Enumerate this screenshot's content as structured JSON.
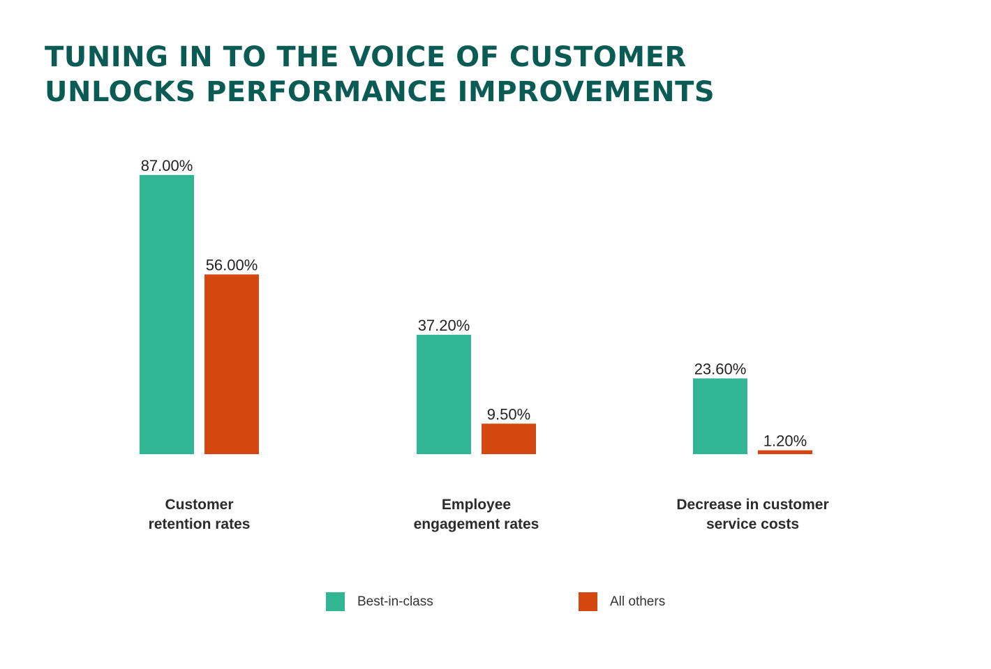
{
  "header": {
    "title_line1": "TUNING IN TO THE VOICE OF CUSTOMER",
    "title_line2": "UNLOCKS PERFORMANCE IMPROVEMENTS"
  },
  "colors": {
    "best_in_class": "#31b592",
    "all_others": "#d4470f",
    "title": "#0b5b55"
  },
  "chart_data": {
    "type": "bar",
    "title": "TUNING IN TO THE VOICE OF CUSTOMER UNLOCKS PERFORMANCE IMPROVEMENTS",
    "categories": [
      [
        "Customer",
        "retention rates"
      ],
      [
        "Employee",
        "engagement rates"
      ],
      [
        "Decrease in customer",
        "service costs"
      ]
    ],
    "series": [
      {
        "name": "Best-in-class",
        "values": [
          87.0,
          37.2,
          23.6
        ],
        "labels": [
          "87.00%",
          "37.20%",
          "23.60%"
        ]
      },
      {
        "name": "All others",
        "values": [
          56.0,
          9.5,
          1.2
        ],
        "labels": [
          "56.00%",
          "9.50%",
          "1.20%"
        ]
      }
    ],
    "ylim": [
      0,
      100
    ],
    "grid": false,
    "legend_position": "bottom"
  }
}
